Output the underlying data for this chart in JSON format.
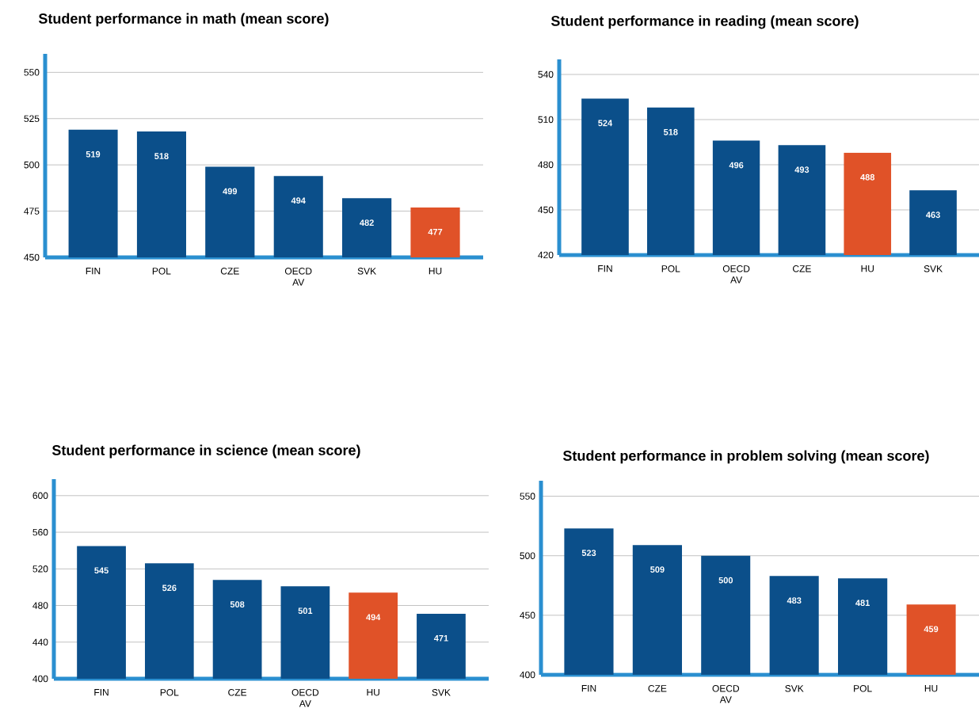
{
  "chart_data": [
    {
      "type": "bar",
      "title": "Student performance in math (mean score)",
      "categories": [
        "FIN",
        "POL",
        "CZE",
        "OECD AV",
        "SVK",
        "HU"
      ],
      "values": [
        519,
        518,
        499,
        494,
        482,
        477
      ],
      "colors": [
        "#0b4f8a",
        "#0b4f8a",
        "#0b4f8a",
        "#0b4f8a",
        "#0b4f8a",
        "#e05228"
      ],
      "ylim": [
        450,
        560
      ],
      "yticks": [
        450,
        475,
        500,
        525,
        550
      ],
      "grid": "y",
      "data_labels": true
    },
    {
      "type": "bar",
      "title": "Student performance in reading (mean score)",
      "categories": [
        "FIN",
        "POL",
        "OECD AV",
        "CZE",
        "HU",
        "SVK"
      ],
      "values": [
        524,
        518,
        496,
        493,
        488,
        463
      ],
      "colors": [
        "#0b4f8a",
        "#0b4f8a",
        "#0b4f8a",
        "#0b4f8a",
        "#e05228",
        "#0b4f8a"
      ],
      "ylim": [
        420,
        550
      ],
      "yticks": [
        420,
        450,
        480,
        510,
        540
      ],
      "grid": "y",
      "data_labels": true
    },
    {
      "type": "bar",
      "title": "Student performance in science (mean score)",
      "categories": [
        "FIN",
        "POL",
        "CZE",
        "OECD AV",
        "HU",
        "SVK"
      ],
      "values": [
        545,
        526,
        508,
        501,
        494,
        471
      ],
      "colors": [
        "#0b4f8a",
        "#0b4f8a",
        "#0b4f8a",
        "#0b4f8a",
        "#e05228",
        "#0b4f8a"
      ],
      "ylim": [
        400,
        618
      ],
      "yticks": [
        400,
        440,
        480,
        520,
        560,
        600
      ],
      "grid": "y",
      "data_labels": true
    },
    {
      "type": "bar",
      "title": "Student performance in problem solving (mean score)",
      "categories": [
        "FIN",
        "CZE",
        "OECD AV",
        "SVK",
        "POL",
        "HU"
      ],
      "values": [
        523,
        509,
        500,
        483,
        481,
        459
      ],
      "colors": [
        "#0b4f8a",
        "#0b4f8a",
        "#0b4f8a",
        "#0b4f8a",
        "#0b4f8a",
        "#e05228"
      ],
      "ylim": [
        400,
        563
      ],
      "yticks": [
        400,
        450,
        500,
        550
      ],
      "grid": "y",
      "data_labels": true
    }
  ]
}
